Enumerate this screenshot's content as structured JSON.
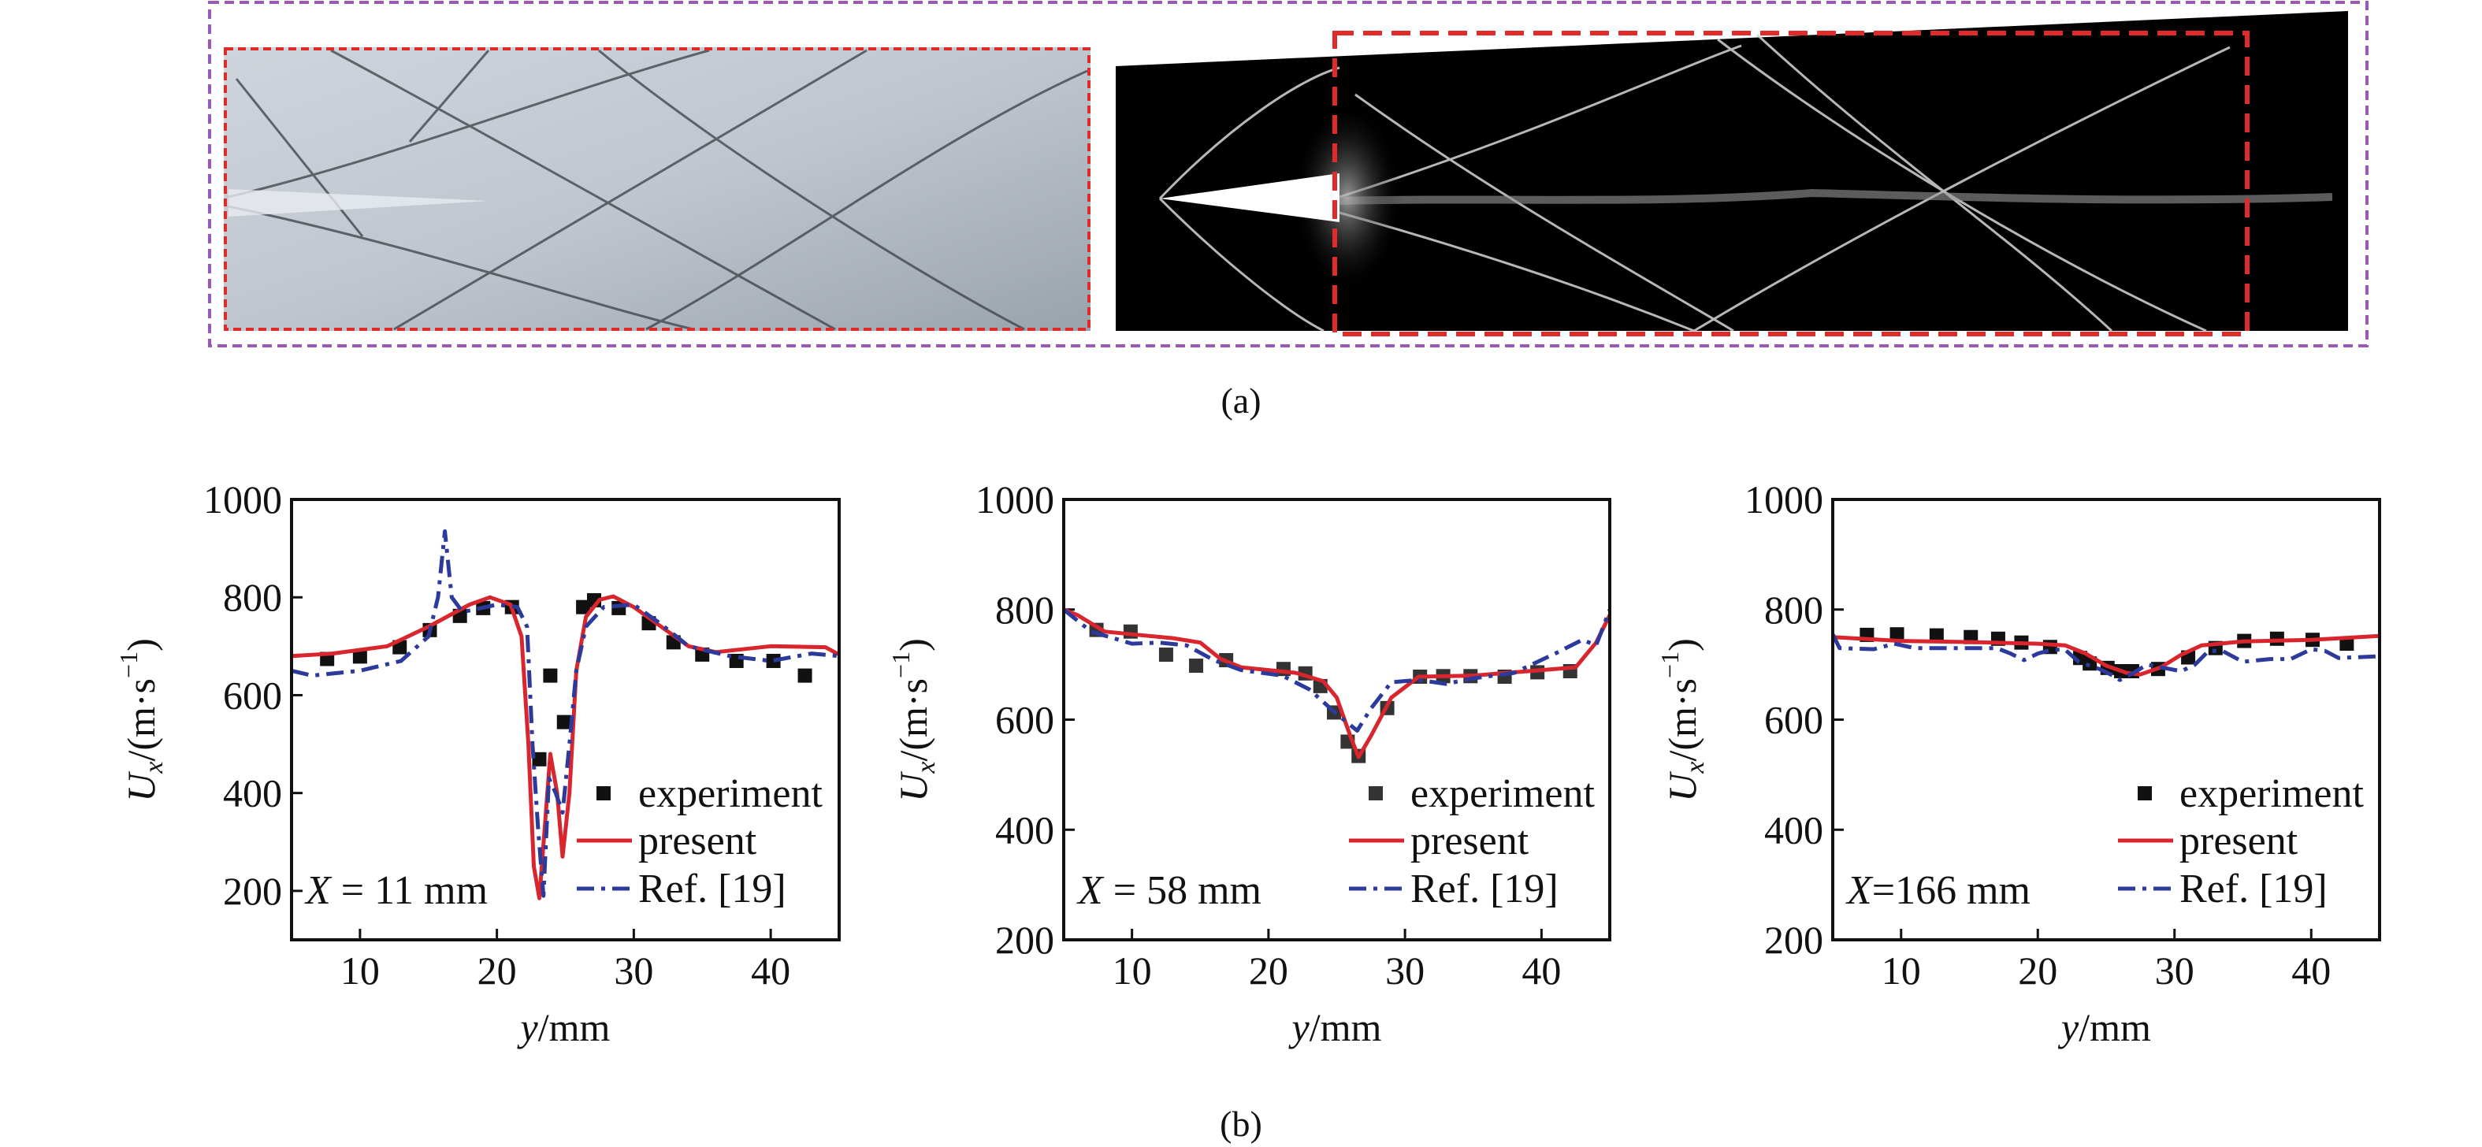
{
  "figure": {
    "caption_a": "(a)",
    "caption_b": "(b)",
    "colors": {
      "frame_a": "#9b59b6",
      "highlight": "#e02b2b",
      "present": "#d9262e",
      "ref": "#2b3a9b",
      "experiment": "#111111"
    }
  },
  "chart_data": [
    {
      "type": "line",
      "annotation": {
        "var": "X",
        "text": " = 11 mm"
      },
      "xlabel": {
        "var": "y",
        "unit": "/mm"
      },
      "ylabel": {
        "var": "U",
        "sub": "x",
        "unit": "/(m·s",
        "sup": "−1",
        "close": ")"
      },
      "xlim": [
        5,
        45
      ],
      "ylim": [
        100,
        1000
      ],
      "xticks": [
        10,
        20,
        30,
        40
      ],
      "yticks": [
        200,
        400,
        600,
        800,
        1000
      ],
      "legend": [
        "experiment",
        "present",
        "Ref. [19]"
      ],
      "legend_placement": "bottom-right",
      "grid": false,
      "series": [
        {
          "name": "experiment",
          "kind": "scatter",
          "x": [
            7.6,
            10,
            12.9,
            15.1,
            17.3,
            19,
            21.1,
            23.1,
            23.9,
            24.9,
            26.3,
            27.1,
            28.9,
            31.1,
            32.9,
            35,
            37.5,
            40.2,
            42.5
          ],
          "y": [
            674,
            679,
            698,
            733,
            762,
            778,
            780,
            469,
            640,
            545,
            780,
            794,
            778,
            747,
            708,
            683,
            670,
            670,
            640
          ]
        },
        {
          "name": "present",
          "kind": "line",
          "x": [
            5,
            8,
            12,
            15,
            18,
            19.5,
            21,
            21.8,
            22.3,
            22.7,
            23.1,
            23.5,
            23.9,
            24.4,
            24.8,
            25.3,
            25.8,
            26.5,
            27.5,
            28.5,
            30,
            32,
            34,
            36,
            40,
            44,
            45
          ],
          "y": [
            680,
            685,
            700,
            740,
            785,
            800,
            785,
            720,
            500,
            250,
            185,
            330,
            480,
            400,
            270,
            400,
            650,
            760,
            795,
            802,
            780,
            740,
            700,
            688,
            700,
            698,
            683
          ]
        },
        {
          "name": "Ref. [19]",
          "kind": "dashdot",
          "x": [
            5,
            6.5,
            10,
            13,
            15,
            15.7,
            16.2,
            16.7,
            17.5,
            20,
            21.5,
            22.2,
            22.6,
            23,
            23.4,
            23.8,
            24.3,
            24.8,
            25.3,
            25.8,
            26.5,
            27.8,
            30,
            32,
            34,
            37,
            40,
            43,
            45
          ],
          "y": [
            650,
            640,
            650,
            670,
            720,
            800,
            935,
            800,
            770,
            785,
            780,
            740,
            500,
            330,
            190,
            430,
            400,
            360,
            500,
            650,
            740,
            780,
            785,
            745,
            700,
            680,
            670,
            685,
            680
          ]
        }
      ]
    },
    {
      "type": "line",
      "annotation": {
        "var": "X",
        "text": " = 58 mm"
      },
      "xlabel": {
        "var": "y",
        "unit": "/mm"
      },
      "ylabel": {
        "var": "U",
        "sub": "x",
        "unit": "/(m·s",
        "sup": "−1",
        "close": ")"
      },
      "xlim": [
        5,
        45
      ],
      "ylim": [
        200,
        1000
      ],
      "xticks": [
        10,
        20,
        30,
        40
      ],
      "yticks": [
        200,
        400,
        600,
        800,
        1000
      ],
      "legend": [
        "experiment",
        "present",
        "Ref. [19]"
      ],
      "legend_placement": "bottom-right",
      "grid": false,
      "series": [
        {
          "name": "experiment",
          "kind": "scatter",
          "x": [
            7.4,
            9.9,
            12.5,
            14.7,
            16.9,
            21.1,
            22.7,
            23.8,
            24.8,
            25.8,
            26.6,
            28.7,
            31.1,
            32.8,
            34.8,
            37.3,
            39.7,
            42.1
          ],
          "y": [
            763,
            760,
            718,
            698,
            708,
            692,
            684,
            661,
            613,
            560,
            534,
            621,
            678,
            679,
            679,
            678,
            686,
            688
          ]
        },
        {
          "name": "present",
          "kind": "line",
          "x": [
            5,
            6,
            8,
            10,
            13,
            15,
            16.5,
            18,
            22,
            24,
            25,
            26,
            26.6,
            27.5,
            29,
            31,
            35,
            40,
            42.5,
            44,
            45
          ],
          "y": [
            800,
            790,
            760,
            755,
            748,
            740,
            710,
            695,
            685,
            670,
            640,
            570,
            532,
            570,
            640,
            678,
            680,
            690,
            695,
            740,
            790
          ]
        },
        {
          "name": "Ref. [19]",
          "kind": "dashdot",
          "x": [
            5,
            7,
            10,
            12,
            14,
            16,
            18,
            21,
            23,
            25,
            26.5,
            27.5,
            29,
            31,
            33,
            35,
            38,
            41,
            43,
            44,
            45
          ],
          "y": [
            800,
            760,
            738,
            740,
            735,
            708,
            690,
            680,
            655,
            610,
            580,
            620,
            668,
            672,
            665,
            675,
            685,
            720,
            745,
            735,
            800
          ]
        }
      ]
    },
    {
      "type": "line",
      "annotation": {
        "var": "X",
        "text": "=166 mm"
      },
      "xlabel": {
        "var": "y",
        "unit": "/mm"
      },
      "ylabel": {
        "var": "U",
        "sub": "x",
        "unit": "/(m·s",
        "sup": "−1",
        "close": ")"
      },
      "xlim": [
        5,
        45
      ],
      "ylim": [
        200,
        1000
      ],
      "xticks": [
        10,
        20,
        30,
        40
      ],
      "yticks": [
        200,
        400,
        600,
        800,
        1000
      ],
      "legend": [
        "experiment",
        "present",
        "Ref. [19]"
      ],
      "legend_placement": "bottom-right",
      "grid": false,
      "series": [
        {
          "name": "experiment",
          "kind": "scatter",
          "x": [
            7.5,
            9.7,
            12.6,
            15.1,
            17.1,
            18.8,
            20.9,
            23.1,
            23.8,
            25.1,
            26.1,
            26.9,
            28.8,
            31,
            33,
            35.1,
            37.5,
            40.1,
            42.6
          ],
          "y": [
            754,
            755,
            753,
            750,
            747,
            740,
            732,
            712,
            702,
            694,
            688,
            688,
            692,
            713,
            730,
            743,
            747,
            745,
            738
          ]
        },
        {
          "name": "present",
          "kind": "line",
          "x": [
            5,
            10,
            15,
            20,
            22,
            23.5,
            25,
            26.5,
            27.5,
            29,
            30.5,
            32,
            35,
            40,
            45
          ],
          "y": [
            750,
            743,
            741,
            738,
            735,
            720,
            698,
            685,
            682,
            695,
            718,
            735,
            742,
            745,
            752
          ]
        },
        {
          "name": "Ref. [19]",
          "kind": "dashdot",
          "x": [
            5,
            5.5,
            8,
            9.5,
            11,
            14,
            17,
            18,
            19,
            20,
            21,
            22,
            23,
            24.5,
            25.5,
            26,
            27,
            28,
            29,
            30.5,
            31.5,
            32.5,
            33.5,
            35,
            37,
            38.5,
            40,
            41,
            42,
            45
          ],
          "y": [
            755,
            730,
            728,
            738,
            730,
            730,
            730,
            720,
            708,
            720,
            727,
            727,
            705,
            692,
            680,
            672,
            685,
            700,
            695,
            688,
            700,
            725,
            725,
            705,
            710,
            710,
            728,
            725,
            712,
            715
          ]
        }
      ]
    }
  ]
}
